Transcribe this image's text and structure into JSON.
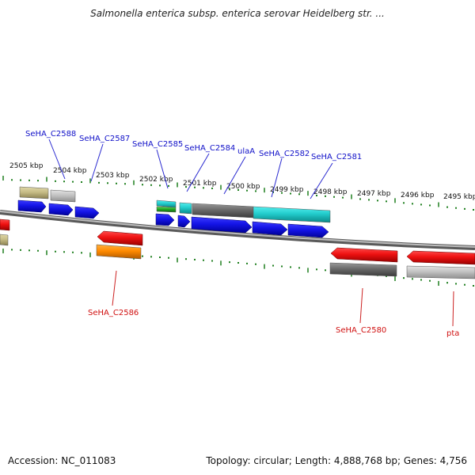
{
  "title": "Salmonella enterica subsp. enterica serovar Heidelberg str. ...",
  "footer": {
    "accession": "Accession: NC_011083",
    "stats": "Topology: circular; Length: 4,888,768 bp; Genes: 4,756"
  },
  "colors": {
    "label_forward": "#1010c8",
    "label_reverse": "#d01010",
    "tick": "#1f7f1f",
    "backbone": "#8a8a8a",
    "leader_forward": "#2a2ad0",
    "leader_reverse": "#cc2020",
    "feature_blue": "#1414e6",
    "feature_red": "#ee1111",
    "feature_gray": "#777777",
    "feature_light_gray": "#bdbdbd",
    "feature_cyan": "#22cccc",
    "feature_khaki": "#c6bc86",
    "feature_orange": "#ff8a00",
    "feature_green": "#22aa22"
  },
  "scale_labels": [
    "2505 kbp",
    "2504 kbp",
    "2503 kbp",
    "2502 kbp",
    "2501 kbp",
    "2500 kbp",
    "2499 kbp",
    "2498 kbp",
    "2497 kbp",
    "2496 kbp",
    "2495 kbp"
  ],
  "forward_labels": [
    "SeHA_C2588",
    "SeHA_C2587",
    "SeHA_C2585",
    "SeHA_C2584",
    "ulaA",
    "SeHA_C2582",
    "SeHA_C2581"
  ],
  "reverse_labels": [
    "SeHA_C2586",
    "SeHA_C2580",
    "pta"
  ]
}
